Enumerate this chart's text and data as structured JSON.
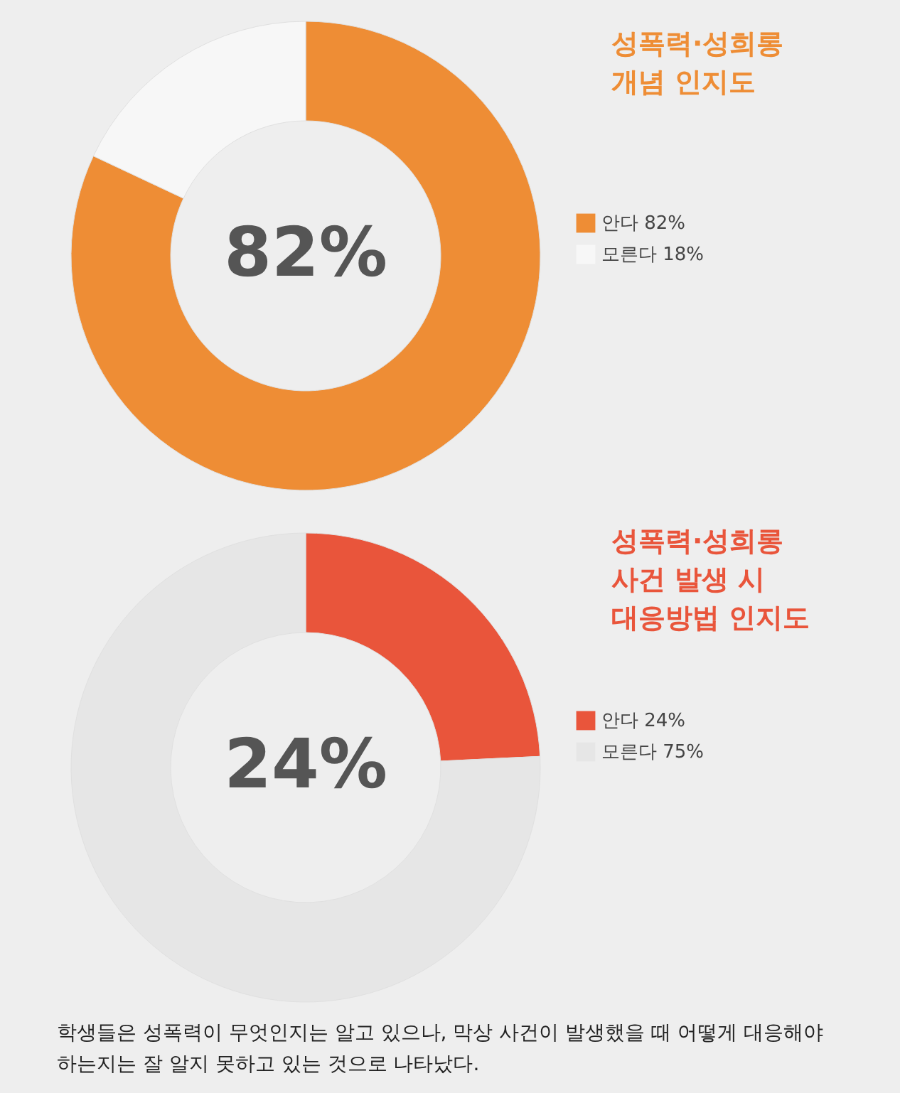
{
  "chart_data": [
    {
      "type": "donut",
      "title": "성폭력·성희롱\n개념 인지도",
      "categories": [
        "안다",
        "모른다"
      ],
      "values": [
        82,
        18
      ],
      "colors": [
        "#ee8d35",
        "#f7f7f7"
      ],
      "value_labels": [
        "82%",
        "18%"
      ],
      "legend": "right",
      "annotations": [
        "82%"
      ]
    },
    {
      "type": "donut",
      "title": "성폭력·성희롱\n사건 발생 시\n대응방법 인지도",
      "categories": [
        "안다",
        "모른다"
      ],
      "values": [
        24,
        75
      ],
      "colors": [
        "#e9553b",
        "#e6e6e6"
      ],
      "value_labels": [
        "24%",
        "75%"
      ],
      "legend": "right",
      "annotations": [
        "24%",
        "학생들은 성폭력이 무엇인지는 알고 있으나, 막상 사건이 발생했을 때 어떻게 대응해야 하는지는 잘 알지 못하고 있는 것으로 나타났다."
      ]
    }
  ]
}
